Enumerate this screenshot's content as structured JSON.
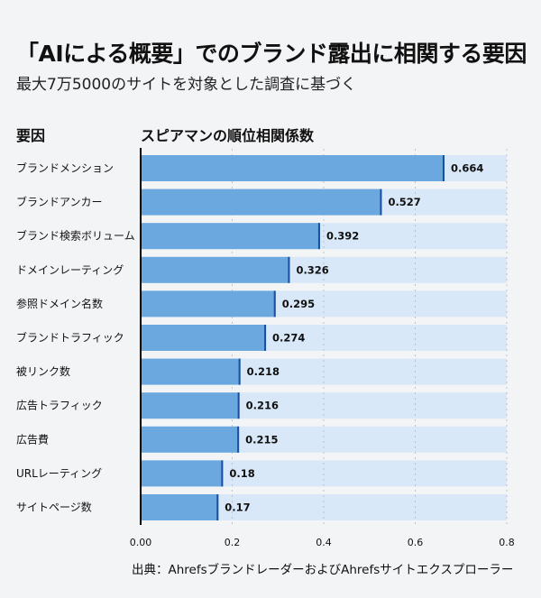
{
  "title": "「AIによる概要」でのブランド露出に相関する要因",
  "subtitle": "最大7万5000のサイトを対象とした調査に基づく",
  "source": "出典：AhrefsブランドレーダーおよびAhrefsサイトエクスプローラー",
  "colors": {
    "bar": "#6aa8df",
    "track": "#d8e8f8",
    "bar_end": "#1a4fa0",
    "background": "#f3f4f6"
  },
  "chart_data": {
    "type": "bar",
    "orientation": "horizontal",
    "category_header": "要因",
    "value_header": "スピアマンの順位相関係数",
    "categories": [
      "ブランドメンション",
      "ブランドアンカー",
      "ブランド検索ボリューム",
      "ドメインレーティング",
      "参照ドメイン名数",
      "ブランドトラフィック",
      "被リンク数",
      "広告トラフィック",
      "広告費",
      "URLレーティング",
      "サイトページ数"
    ],
    "values": [
      0.664,
      0.527,
      0.392,
      0.326,
      0.295,
      0.274,
      0.218,
      0.216,
      0.215,
      0.18,
      0.17
    ],
    "value_labels": [
      "0.664",
      "0.527",
      "0.392",
      "0.326",
      "0.295",
      "0.274",
      "0.218",
      "0.216",
      "0.215",
      "0.18",
      "0.17"
    ],
    "xlim": [
      0,
      0.8
    ],
    "xticks": [
      "0.00",
      "0.2",
      "0.4",
      "0.6",
      "0.8"
    ],
    "grid": "vertical dotted",
    "legend": "none"
  }
}
